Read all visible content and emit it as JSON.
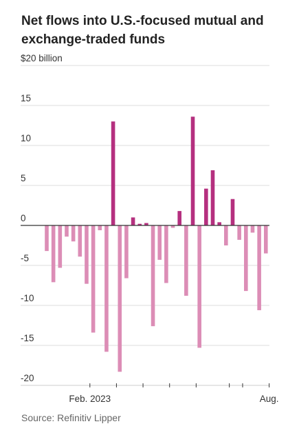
{
  "title": "Net flows into U.S.-focused mutual and exchange-traded funds",
  "source": "Source: Refinitiv Lipper",
  "chart_data": {
    "type": "bar",
    "title": "Net flows into U.S.-focused mutual and exchange-traded funds",
    "unit_label": "$20 billion",
    "ylim": [
      -20,
      20
    ],
    "yticks": [
      20,
      15,
      10,
      5,
      0,
      -5,
      -10,
      -15,
      -20
    ],
    "ytick_labels": [
      "$20 billion",
      "15",
      "10",
      "5",
      "0",
      "-5",
      "-10",
      "-15",
      "-20"
    ],
    "xtick_labels": [
      {
        "label": "Feb. 2023",
        "index": 6.5
      },
      {
        "label": "Aug.",
        "index": 33.5
      }
    ],
    "minor_tick_indices": [
      6.5,
      10.5,
      14.5,
      18.5,
      22.5,
      27.5,
      29.5,
      33.5
    ],
    "grid": true,
    "colors": {
      "positive": "#b5307f",
      "negative": "#dc8db6"
    },
    "values": [
      -3.2,
      -7.1,
      -5.3,
      -1.4,
      -2.0,
      -3.9,
      -7.3,
      -13.4,
      -0.6,
      -15.8,
      13.0,
      -18.3,
      -6.6,
      1.0,
      0.2,
      0.3,
      -12.6,
      -4.3,
      -7.2,
      -0.3,
      1.8,
      -8.8,
      13.6,
      -15.3,
      4.6,
      6.9,
      0.4,
      -2.5,
      3.3,
      -1.8,
      -8.2,
      -0.9,
      -10.6,
      -3.5
    ]
  }
}
